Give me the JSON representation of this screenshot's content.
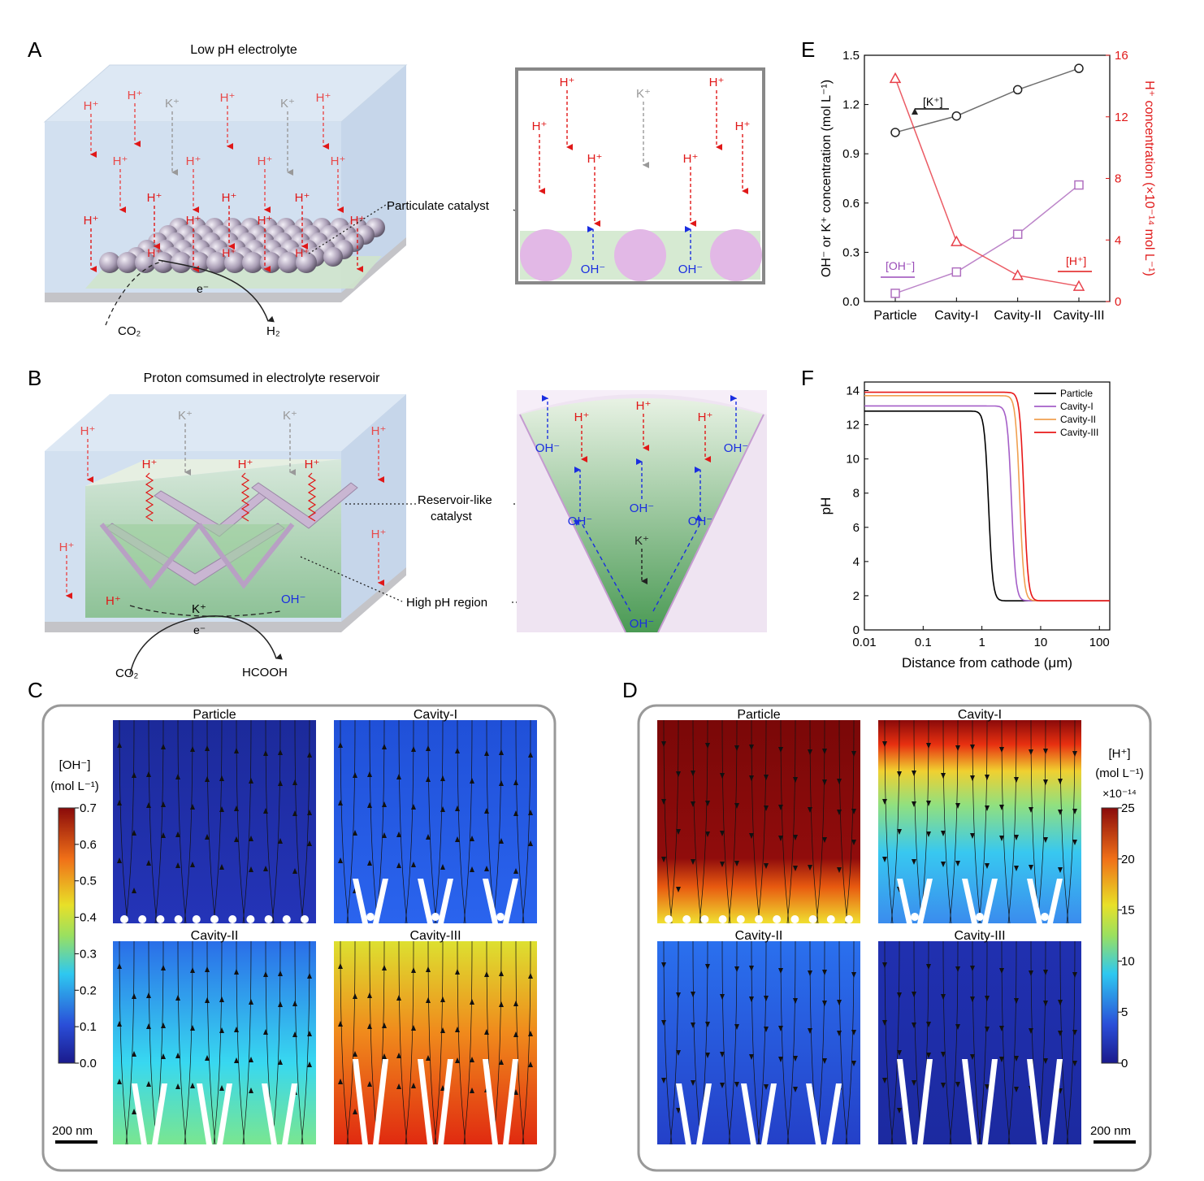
{
  "panels": {
    "A": {
      "letter": "A",
      "title": "Low pH electrolyte",
      "ion_h": "H⁺",
      "ion_k": "K⁺",
      "callout": "Particulate catalyst",
      "electron": "e⁻",
      "reactant": "CO₂",
      "product": "H₂",
      "inset_ion_h": "H⁺",
      "inset_ion_k": "K⁺",
      "inset_ion_oh": "OH⁻"
    },
    "B": {
      "letter": "B",
      "title": "Proton comsumed in electrolyte reservoir",
      "ion_h": "H⁺",
      "ion_k": "K⁺",
      "ion_oh": "OH⁻",
      "callout_reservoir_1": "Reservoir-like",
      "callout_reservoir_2": "catalyst",
      "callout_highph": "High pH region",
      "electron": "e⁻",
      "reactant": "CO₂",
      "product": "HCOOH",
      "inset_ion_h": "H⁺",
      "inset_ion_k": "K⁺",
      "inset_ion_oh": "OH⁻"
    },
    "C": {
      "letter": "C",
      "maps": [
        "Particle",
        "Cavity-I",
        "Cavity-II",
        "Cavity-III"
      ],
      "colorbar_title_1": "[OH⁻]",
      "colorbar_title_2": "(mol L⁻¹)",
      "colorbar_ticks": [
        "0.7",
        "0.6",
        "0.5",
        "0.4",
        "0.3",
        "0.2",
        "0.1",
        "0.0"
      ],
      "scale_bar": "200 nm"
    },
    "D": {
      "letter": "D",
      "maps": [
        "Particle",
        "Cavity-I",
        "Cavity-II",
        "Cavity-III"
      ],
      "colorbar_title_1": "[H⁺]",
      "colorbar_title_2": "(mol L⁻¹)",
      "colorbar_multiplier": "×10⁻¹⁴",
      "colorbar_ticks": [
        "25",
        "20",
        "15",
        "10",
        "5",
        "0"
      ],
      "scale_bar": "200 nm"
    },
    "E": {
      "letter": "E",
      "label_k": "[K⁺]",
      "label_oh": "[OH⁻]",
      "label_h": "[H⁺]"
    },
    "F": {
      "letter": "F"
    }
  },
  "chart_data": [
    {
      "id": "E",
      "type": "line",
      "categories": [
        "Particle",
        "Cavity-I",
        "Cavity-II",
        "Cavity-III"
      ],
      "ylabel": "OH⁻ or K⁺ concentration (mol L⁻¹)",
      "y2label": "H⁺ concentration (×10⁻¹⁴ mol L⁻¹)",
      "ylim": [
        0,
        1.5
      ],
      "y2lim": [
        0,
        16
      ],
      "yticks": [
        "0.0",
        "0.3",
        "0.6",
        "0.9",
        "1.2",
        "1.5"
      ],
      "y2ticks": [
        "0",
        "4",
        "8",
        "12",
        "16"
      ],
      "series": [
        {
          "axis": "left",
          "color": "#555555",
          "marker": "circle",
          "values": [
            1.03,
            1.13,
            1.29,
            1.42
          ]
        },
        {
          "axis": "left",
          "color": "#b070c0",
          "marker": "square",
          "values": [
            0.05,
            0.18,
            0.41,
            0.71
          ]
        },
        {
          "axis": "right",
          "color": "#e8404a",
          "marker": "triangle",
          "values": [
            14.5,
            3.9,
            1.7,
            1.0
          ]
        }
      ]
    },
    {
      "id": "F",
      "type": "line",
      "xlabel": "Distance from cathode (μm)",
      "ylabel": "pH",
      "xscale": "log",
      "xlim": [
        0.01,
        150
      ],
      "ylim": [
        0,
        14.5
      ],
      "xticks": [
        "0.01",
        "0.1",
        "1",
        "10",
        "100"
      ],
      "yticks": [
        "0",
        "2",
        "4",
        "6",
        "8",
        "10",
        "12",
        "14"
      ],
      "legend": "top-right",
      "series": [
        {
          "name": "Particle",
          "color": "#000000",
          "plateau": 12.8,
          "final": 1.7,
          "mid": 1.3
        },
        {
          "name": "Cavity-I",
          "color": "#a55fc8",
          "plateau": 13.1,
          "final": 1.7,
          "mid": 3.2
        },
        {
          "name": "Cavity-II",
          "color": "#f0a050",
          "plateau": 13.7,
          "final": 1.7,
          "mid": 4.4
        },
        {
          "name": "Cavity-III",
          "color": "#e81818",
          "plateau": 13.9,
          "final": 1.7,
          "mid": 5.2
        }
      ]
    }
  ]
}
